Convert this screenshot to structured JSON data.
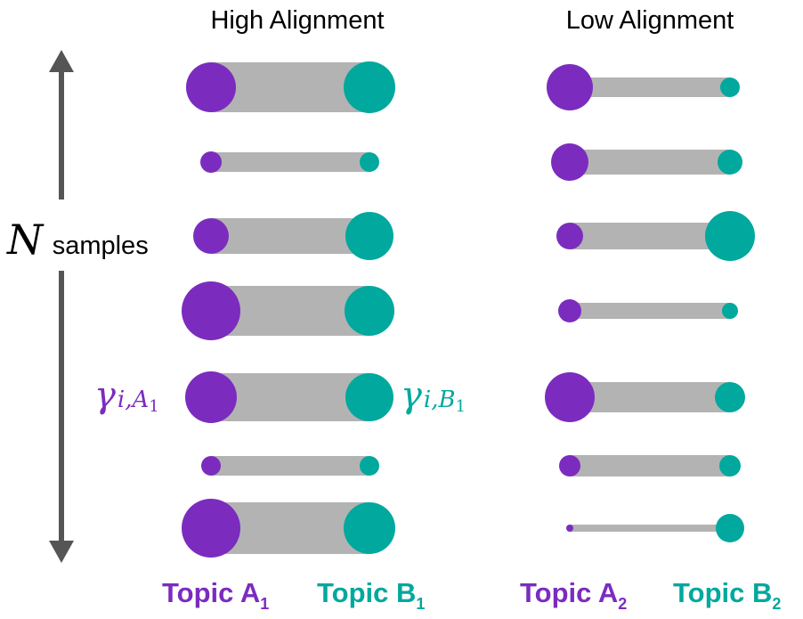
{
  "colors": {
    "topic_a": "#7b2cbf",
    "topic_b": "#00a89d",
    "bar": "#b3b3b3",
    "axis": "#555555"
  },
  "axis": {
    "variable": "N",
    "label": "samples"
  },
  "panels": [
    {
      "title": "High Alignment",
      "gamma_a": {
        "symbol": "γ",
        "sub": "i,A",
        "subsub": "1"
      },
      "gamma_b": {
        "symbol": "γ",
        "sub": "i,B",
        "subsub": "1"
      },
      "topic_a": {
        "label": "Topic A",
        "sub": "1"
      },
      "topic_b": {
        "label": "Topic B",
        "sub": "1"
      },
      "rows": [
        {
          "a": 28,
          "b": 29
        },
        {
          "a": 12,
          "b": 11
        },
        {
          "a": 20,
          "b": 27
        },
        {
          "a": 33,
          "b": 28
        },
        {
          "a": 29,
          "b": 27
        },
        {
          "a": 11,
          "b": 11
        },
        {
          "a": 33,
          "b": 29
        }
      ]
    },
    {
      "title": "Low Alignment",
      "topic_a": {
        "label": "Topic A",
        "sub": "2"
      },
      "topic_b": {
        "label": "Topic B",
        "sub": "2"
      },
      "rows": [
        {
          "a": 26,
          "b": 11
        },
        {
          "a": 21,
          "b": 14
        },
        {
          "a": 15,
          "b": 28
        },
        {
          "a": 13,
          "b": 9
        },
        {
          "a": 28,
          "b": 17
        },
        {
          "a": 12,
          "b": 12
        },
        {
          "a": 4,
          "b": 16
        }
      ]
    }
  ]
}
